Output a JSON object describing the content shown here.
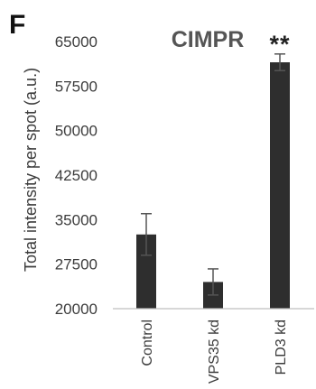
{
  "panel_letter": "F",
  "colors": {
    "bar": "#2e2e2e",
    "axis": "#bfbfbf",
    "text": "#3c3c3c",
    "title": "#555555"
  },
  "chart_data": {
    "type": "bar",
    "title": "CIMPR",
    "xlabel": "",
    "ylabel": "Total intensity per spot (a.u.)",
    "ylim": [
      20000,
      65000
    ],
    "yticks": [
      20000,
      27500,
      35000,
      42500,
      50000,
      57500,
      65000
    ],
    "ytick_labels": [
      "20000",
      "27500",
      "35000",
      "42500",
      "50000",
      "57500",
      "65000"
    ],
    "categories": [
      "Control",
      "VPS35 kd",
      "PLD3 kd"
    ],
    "values": [
      32500,
      24500,
      61500
    ],
    "errors": [
      3500,
      2200,
      1400
    ],
    "annotations": [
      "",
      "",
      "**"
    ],
    "grid": false,
    "legend": "none"
  }
}
